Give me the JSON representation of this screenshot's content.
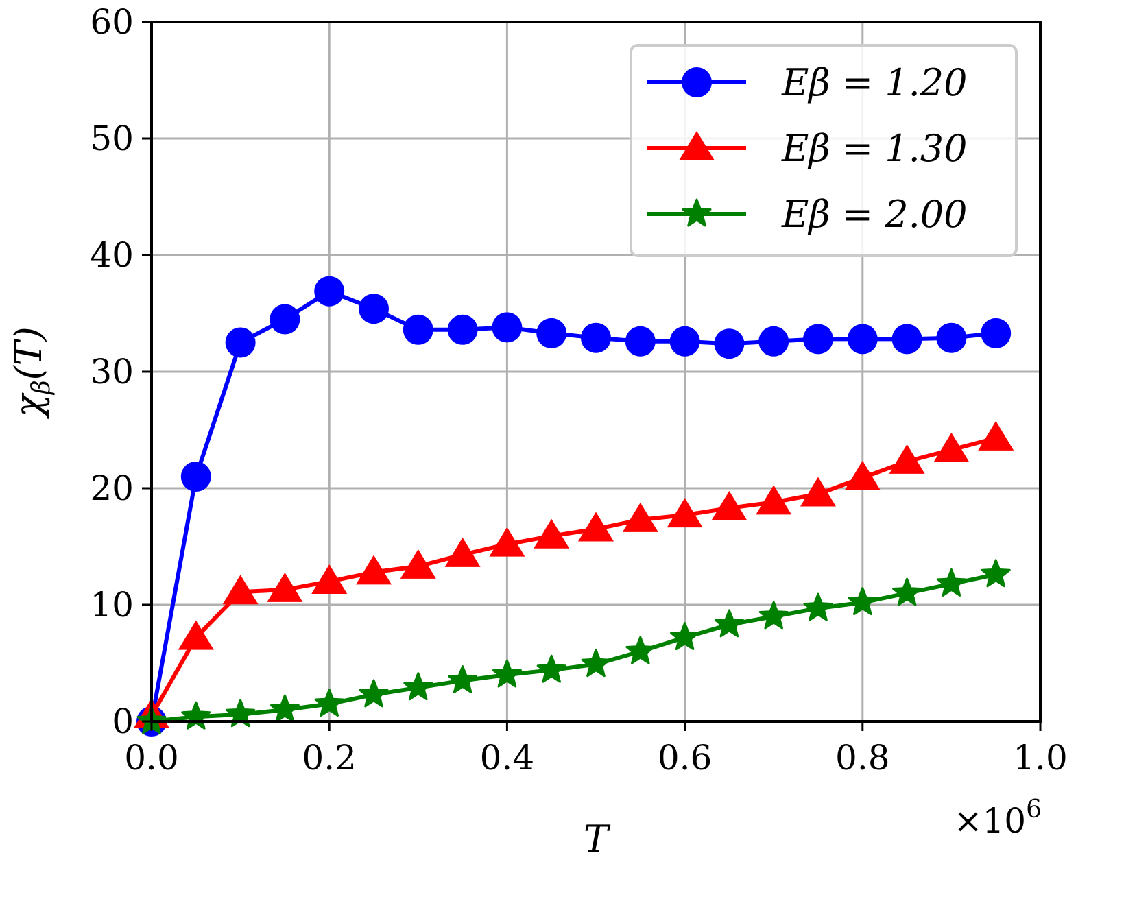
{
  "chart_data": {
    "type": "line",
    "title": "",
    "xlabel": "T",
    "ylabel": "χ_β(T)",
    "x_multiplier_label": "×10^6",
    "xlim": [
      0.0,
      1.0
    ],
    "ylim": [
      0,
      60
    ],
    "x_ticks": [
      0.0,
      0.2,
      0.4,
      0.6,
      0.8,
      1.0
    ],
    "x_tick_labels": [
      "0.0",
      "0.2",
      "0.4",
      "0.6",
      "0.8",
      "1.0"
    ],
    "y_ticks": [
      0,
      10,
      20,
      30,
      40,
      50,
      60
    ],
    "y_tick_labels": [
      "0",
      "10",
      "20",
      "30",
      "40",
      "50",
      "60"
    ],
    "grid": true,
    "legend_position": "top-right",
    "series": [
      {
        "name": "Eβ = 1.20",
        "color": "#0000ff",
        "marker": "circle",
        "x": [
          0.0,
          0.05,
          0.1,
          0.15,
          0.2,
          0.25,
          0.3,
          0.35,
          0.4,
          0.45,
          0.5,
          0.55,
          0.6,
          0.65,
          0.7,
          0.75,
          0.8,
          0.85,
          0.9,
          0.95
        ],
        "values": [
          0.0,
          21.0,
          32.5,
          34.5,
          36.9,
          35.4,
          33.6,
          33.6,
          33.8,
          33.3,
          32.9,
          32.6,
          32.6,
          32.4,
          32.6,
          32.8,
          32.8,
          32.8,
          32.9,
          33.3
        ]
      },
      {
        "name": "Eβ = 1.30",
        "color": "#ff0000",
        "marker": "triangle",
        "x": [
          0.0,
          0.05,
          0.1,
          0.15,
          0.2,
          0.25,
          0.3,
          0.35,
          0.4,
          0.45,
          0.5,
          0.55,
          0.6,
          0.65,
          0.7,
          0.75,
          0.8,
          0.85,
          0.9,
          0.95
        ],
        "values": [
          0.5,
          7.2,
          11.1,
          11.3,
          12.0,
          12.8,
          13.3,
          14.3,
          15.2,
          15.9,
          16.5,
          17.3,
          17.7,
          18.3,
          18.8,
          19.5,
          20.9,
          22.3,
          23.3,
          24.3
        ]
      },
      {
        "name": "Eβ = 2.00",
        "color": "#008000",
        "marker": "star",
        "x": [
          0.0,
          0.05,
          0.1,
          0.15,
          0.2,
          0.25,
          0.3,
          0.35,
          0.4,
          0.45,
          0.5,
          0.55,
          0.6,
          0.65,
          0.7,
          0.75,
          0.8,
          0.85,
          0.9,
          0.95
        ],
        "values": [
          0.0,
          0.4,
          0.6,
          1.0,
          1.5,
          2.3,
          2.9,
          3.5,
          4.0,
          4.4,
          4.9,
          6.0,
          7.2,
          8.3,
          9.0,
          9.7,
          10.2,
          11.0,
          11.8,
          12.6
        ]
      }
    ]
  }
}
